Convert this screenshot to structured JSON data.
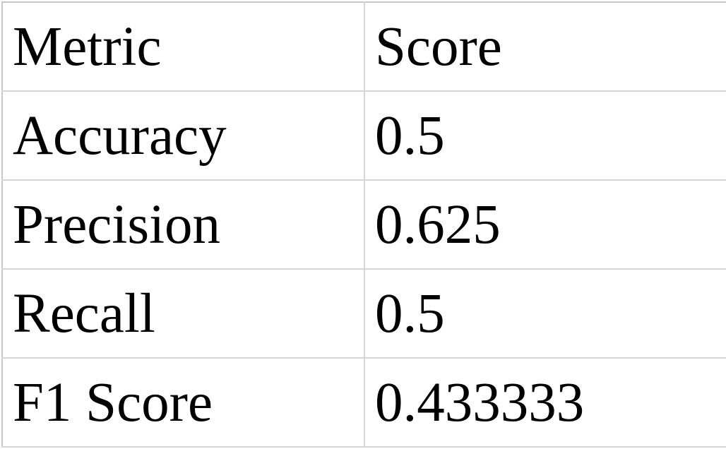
{
  "table": {
    "header": [
      "Metric",
      "Score"
    ],
    "rows": [
      [
        "Accuracy",
        "0.5"
      ],
      [
        "Precision",
        "0.625"
      ],
      [
        "Recall",
        "0.5"
      ],
      [
        "F1 Score",
        "0.433333"
      ]
    ]
  },
  "chart_data": {
    "type": "table",
    "columns": [
      "Metric",
      "Score"
    ],
    "rows": [
      {
        "Metric": "Accuracy",
        "Score": 0.5
      },
      {
        "Metric": "Precision",
        "Score": 0.625
      },
      {
        "Metric": "Recall",
        "Score": 0.5
      },
      {
        "Metric": "F1 Score",
        "Score": 0.433333
      }
    ]
  }
}
